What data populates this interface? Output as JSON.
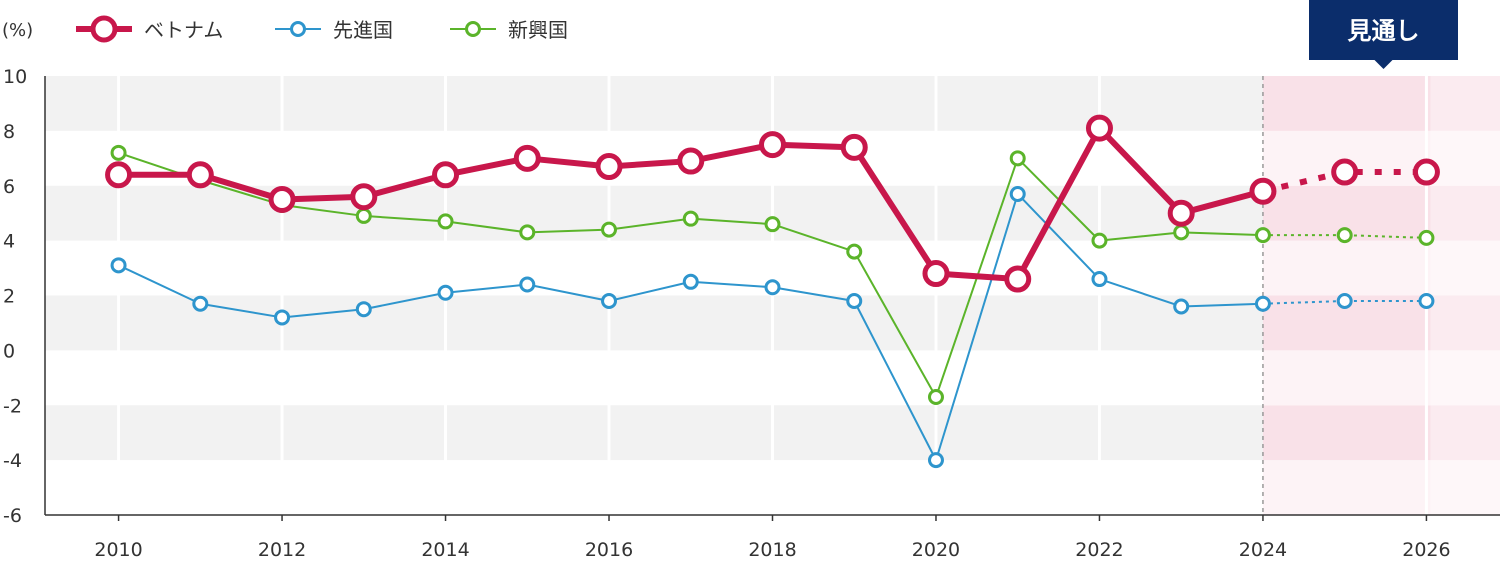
{
  "chart_data": {
    "type": "line",
    "unit_label": "(%)",
    "forecast_label": "見通し",
    "x": [
      2010,
      2011,
      2012,
      2013,
      2014,
      2015,
      2016,
      2017,
      2018,
      2019,
      2020,
      2021,
      2022,
      2023,
      2024,
      2025,
      2026
    ],
    "x_ticks": [
      "2010",
      "2012",
      "2014",
      "2016",
      "2018",
      "2020",
      "2022",
      "2024",
      "2026"
    ],
    "y_ticks": [
      "10",
      "8",
      "6",
      "4",
      "2",
      "0",
      "-2",
      "-4",
      "-6"
    ],
    "ylim": [
      -6,
      10
    ],
    "xlim": [
      2009.1,
      2026.9
    ],
    "forecast_start": 2024,
    "grid": true,
    "legend_position": "top-left",
    "series": [
      {
        "name": "ベトナム",
        "color": "#c8174b",
        "values": [
          6.4,
          6.4,
          5.5,
          5.6,
          6.4,
          7.0,
          6.7,
          6.9,
          7.5,
          7.4,
          2.8,
          2.6,
          8.1,
          5.0,
          5.8,
          6.5,
          6.5
        ]
      },
      {
        "name": "先進国",
        "color": "#2e95cd",
        "values": [
          3.1,
          1.7,
          1.2,
          1.5,
          2.1,
          2.4,
          1.8,
          2.5,
          2.3,
          1.8,
          -4.0,
          5.7,
          2.6,
          1.6,
          1.7,
          1.8,
          1.8
        ]
      },
      {
        "name": "新興国",
        "color": "#5bb42a",
        "values": [
          7.2,
          6.2,
          5.3,
          4.9,
          4.7,
          4.3,
          4.4,
          4.8,
          4.6,
          3.6,
          -1.7,
          7.0,
          4.0,
          4.3,
          4.2,
          4.2,
          4.1
        ]
      }
    ]
  },
  "colors": {
    "band_gray": "#f2f2f2",
    "band_pink": "#f9e1e8",
    "band_pink_light": "#fdf3f6",
    "forecast_badge": "#0b2d6b",
    "axis": "#333333"
  }
}
